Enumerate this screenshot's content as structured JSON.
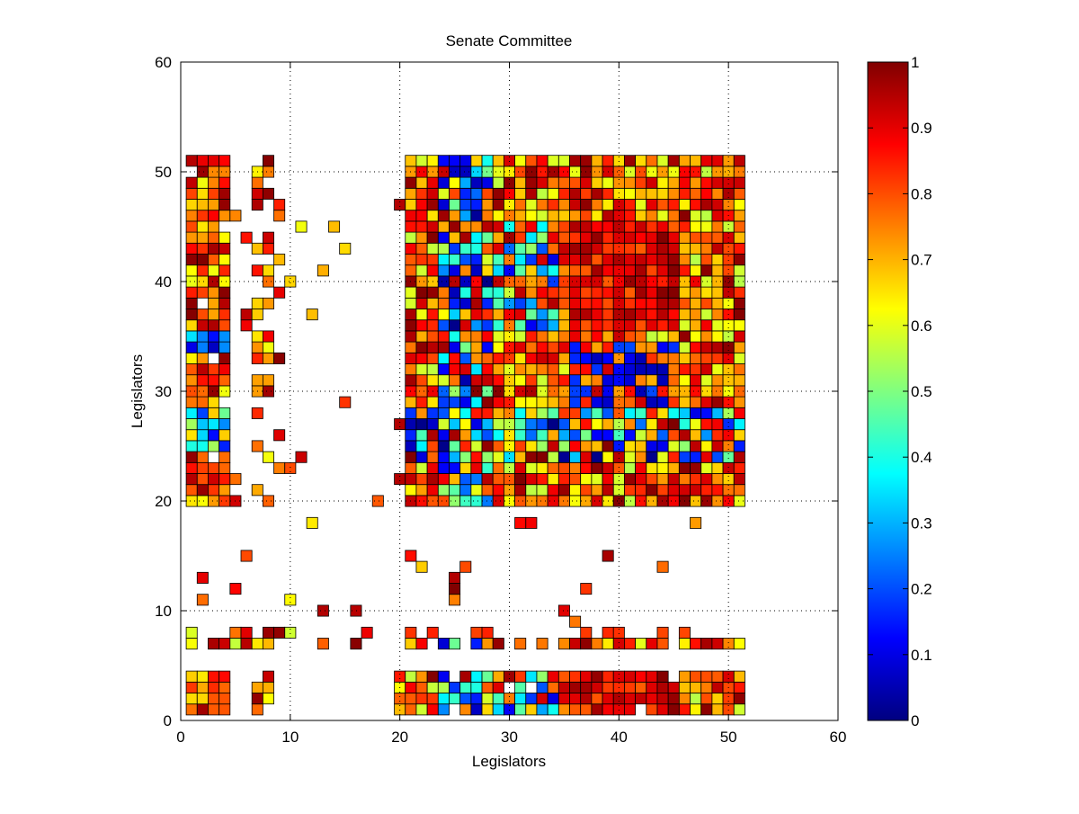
{
  "chart_data": {
    "type": "heatmap",
    "title": "Senate Committee",
    "xlabel": "Legislators",
    "ylabel": "Legislators",
    "xlim": [
      0,
      60
    ],
    "ylim": [
      0,
      60
    ],
    "xticks": [
      "0",
      "10",
      "20",
      "30",
      "40",
      "50",
      "60"
    ],
    "yticks": [
      "0",
      "10",
      "20",
      "30",
      "40",
      "50",
      "60"
    ],
    "grid": true,
    "colorbar": {
      "colormap": "jet",
      "range": [
        0,
        1
      ],
      "ticks": [
        "0",
        "0.1",
        "0.2",
        "0.3",
        "0.4",
        "0.5",
        "0.6",
        "0.7",
        "0.8",
        "0.9",
        "1"
      ]
    },
    "matrix_size": 51,
    "cell_rule": "blank cell = no value; otherwise value in [0,1] mapped through jet colormap",
    "blocks": {
      "main_x": [
        20,
        51
      ],
      "main_y": [
        20,
        51
      ],
      "left_x": [
        1,
        10
      ],
      "bottom_y": [
        1,
        8
      ]
    }
  }
}
